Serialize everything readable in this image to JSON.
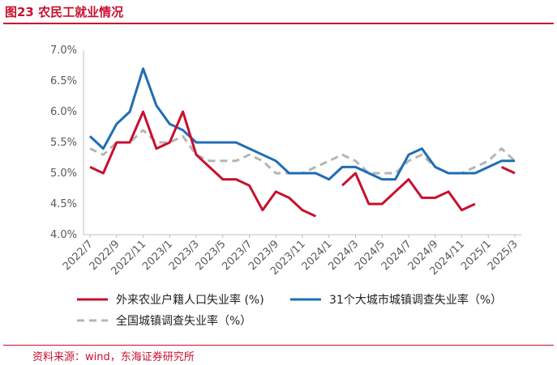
{
  "figure": {
    "title": "图23  农民工就业情况",
    "source": "资料来源：wind，东海证券研究所"
  },
  "colors": {
    "accent": "#c8102e",
    "migrant": "#c8102e",
    "city31": "#1f6db5",
    "national": "#b5b5b5",
    "axis": "#bfbfbf"
  },
  "chart_data": {
    "type": "line",
    "ylim": [
      4.0,
      7.0
    ],
    "y_ticks": [
      "4.0%",
      "4.5%",
      "5.0%",
      "5.5%",
      "6.0%",
      "6.5%",
      "7.0%"
    ],
    "y_tick_values": [
      4.0,
      4.5,
      5.0,
      5.5,
      6.0,
      6.5,
      7.0
    ],
    "x": [
      "2022/7",
      "2022/8",
      "2022/9",
      "2022/10",
      "2022/11",
      "2022/12",
      "2023/1",
      "2023/2",
      "2023/3",
      "2023/4",
      "2023/5",
      "2023/6",
      "2023/7",
      "2023/8",
      "2023/9",
      "2023/10",
      "2023/11",
      "2023/12",
      "2024/1",
      "2024/2",
      "2024/3",
      "2024/4",
      "2024/5",
      "2024/6",
      "2024/7",
      "2024/8",
      "2024/9",
      "2024/10",
      "2024/11",
      "2024/12",
      "2025/1",
      "2025/2",
      "2025/3"
    ],
    "x_tick_labels": [
      "2022/7",
      "2022/9",
      "2022/11",
      "2023/1",
      "2023/3",
      "2023/5",
      "2023/7",
      "2023/9",
      "2023/11",
      "2024/1",
      "2024/3",
      "2024/5",
      "2024/7",
      "2024/9",
      "2024/11",
      "2025/1",
      "2025/3"
    ],
    "grid": false,
    "legend_position": "bottom",
    "series": [
      {
        "name": "外来农业户籍人口失业率 (%)",
        "style": "solid",
        "values": [
          5.1,
          5.0,
          5.5,
          5.5,
          6.0,
          5.4,
          5.5,
          6.0,
          5.3,
          5.1,
          4.9,
          4.9,
          4.8,
          4.4,
          4.7,
          4.6,
          4.4,
          4.3,
          null,
          4.8,
          5.0,
          4.5,
          4.5,
          4.7,
          4.9,
          4.6,
          4.6,
          4.7,
          4.4,
          4.5,
          null,
          5.1,
          5.0
        ]
      },
      {
        "name": "31个大城市城镇调查失业率（%）",
        "style": "solid",
        "values": [
          5.6,
          5.4,
          5.8,
          6.0,
          6.7,
          6.1,
          5.8,
          5.7,
          5.5,
          5.5,
          5.5,
          5.5,
          5.4,
          5.3,
          5.2,
          5.0,
          5.0,
          5.0,
          4.9,
          5.1,
          5.1,
          5.0,
          4.9,
          4.9,
          5.3,
          5.4,
          5.1,
          5.0,
          5.0,
          5.0,
          5.1,
          5.2,
          5.2
        ]
      },
      {
        "name": "全国城镇调查失业率（%）",
        "style": "dashed",
        "values": [
          5.4,
          5.3,
          5.5,
          5.5,
          5.7,
          5.5,
          5.5,
          5.6,
          5.3,
          5.2,
          5.2,
          5.2,
          5.3,
          5.2,
          5.0,
          5.0,
          5.0,
          5.1,
          5.2,
          5.3,
          5.2,
          5.0,
          5.0,
          5.0,
          5.2,
          5.3,
          5.1,
          5.0,
          5.0,
          5.1,
          5.2,
          5.4,
          5.2
        ]
      }
    ]
  }
}
